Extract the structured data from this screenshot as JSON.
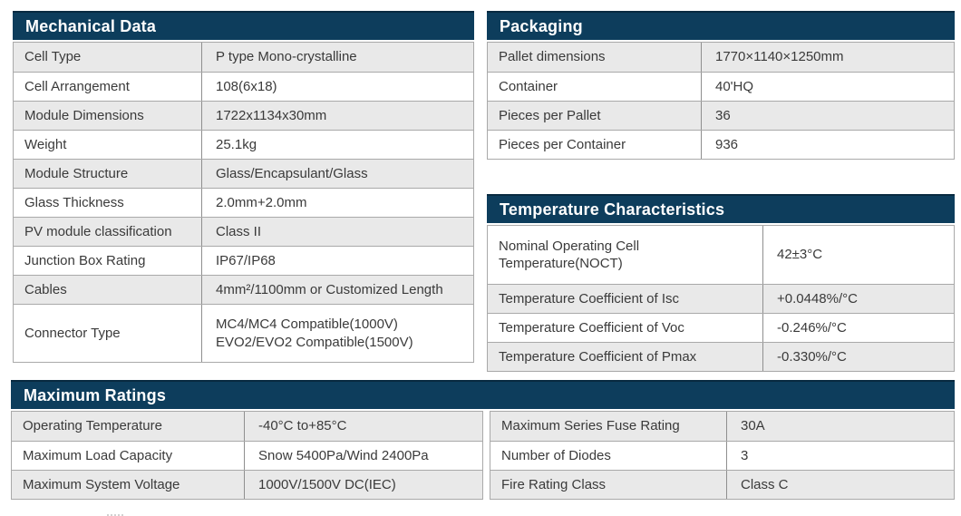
{
  "colors": {
    "header_background": "#0d3d5c",
    "header_text": "#ffffff",
    "row_alternate_gray": "#e9e9e9",
    "body_text": "#3a3a3a"
  },
  "tables": {
    "mechanical": {
      "title": "Mechanical Data",
      "rows": [
        {
          "label": "Cell Type",
          "value": "P type Mono-crystalline"
        },
        {
          "label": "Cell Arrangement",
          "value": "108(6x18)"
        },
        {
          "label": "Module Dimensions",
          "value": "1722x1134x30mm"
        },
        {
          "label": "Weight",
          "value": "25.1kg"
        },
        {
          "label": "Module Structure",
          "value": "Glass/Encapsulant/Glass"
        },
        {
          "label": "Glass Thickness",
          "value": "2.0mm+2.0mm"
        },
        {
          "label": "PV module classification",
          "value": "Class II"
        },
        {
          "label": "Junction Box Rating",
          "value": "IP67/IP68"
        },
        {
          "label": "Cables",
          "value": "4mm²/1100mm or Customized Length"
        },
        {
          "label": "Connector Type",
          "value": "MC4/MC4 Compatible(1000V)\nEVO2/EVO2 Compatible(1500V)"
        }
      ]
    },
    "packaging": {
      "title": "Packaging",
      "rows": [
        {
          "label": "Pallet dimensions",
          "value": "1770×1140×1250mm"
        },
        {
          "label": "Container",
          "value": "40'HQ"
        },
        {
          "label": "Pieces per Pallet",
          "value": "36"
        },
        {
          "label": "Pieces per Container",
          "value": "936"
        }
      ]
    },
    "temperature": {
      "title": "Temperature Characteristics",
      "rows": [
        {
          "label": "Nominal Operating Cell Temperature(NOCT)",
          "value": "42±3°C"
        },
        {
          "label": "Temperature Coefficient of Isc",
          "value": "+0.0448%/°C"
        },
        {
          "label": "Temperature Coefficient of Voc",
          "value": "-0.246%/°C"
        },
        {
          "label": "Temperature Coefficient of Pmax",
          "value": "-0.330%/°C"
        }
      ]
    },
    "maximum": {
      "title": "Maximum Ratings",
      "left_rows": [
        {
          "label": "Operating Temperature",
          "value": "-40°C to+85°C"
        },
        {
          "label": "Maximum Load Capacity",
          "value": "Snow 5400Pa/Wind 2400Pa"
        },
        {
          "label": "Maximum System Voltage",
          "value": "1000V/1500V DC(IEC)"
        }
      ],
      "right_rows": [
        {
          "label": "Maximum Series Fuse Rating",
          "value": "30A"
        },
        {
          "label": "Number of Diodes",
          "value": "3"
        },
        {
          "label": "Fire Rating Class",
          "value": "Class C"
        }
      ]
    }
  }
}
